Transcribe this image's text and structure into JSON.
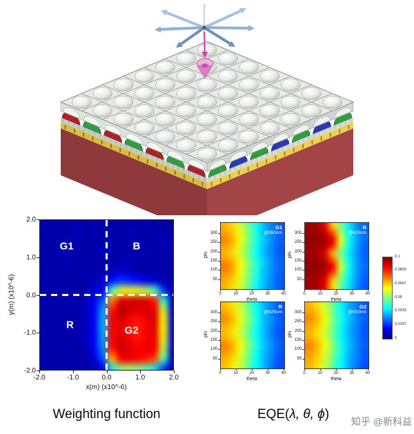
{
  "figure": {
    "watermark": "知乎 @新科益",
    "captions": {
      "left": "Weighting function",
      "eqe_prefix": "EQE(",
      "eqe_args": "λ, θ, ϕ",
      "eqe_suffix": ")"
    }
  },
  "sensor_3d": {
    "colors": {
      "base": "#a34547",
      "base_dark": "#8e3a3c",
      "gold": "#edd052",
      "gold_dark": "#d9bc42",
      "red": "#b22026",
      "green": "#2f9e3f",
      "blue": "#2a3ab4",
      "arrow_light": "#a6c2e2",
      "arrow_mid": "#8fb0d4",
      "arrow_dark": "#6d8fb8",
      "source_pink": "#f0b2e0",
      "source_magenta": "#cf3fae"
    }
  },
  "chart_data": [
    {
      "id": "weighting",
      "type": "heatmap",
      "title": "Weighting function",
      "xlabel": "x(m) (x10^-6)",
      "ylabel": "y(m) (x10^-6)",
      "xticks": [
        "-2.0",
        "-1.0",
        "0.0",
        "1.0",
        "2.0"
      ],
      "yticks": [
        "2.0",
        "1.0",
        "0.0",
        "-1.0",
        "-2.0"
      ],
      "xrange": [
        -2,
        2
      ],
      "yrange": [
        -2,
        2
      ],
      "colormap": "jet",
      "vmax": 1.0,
      "crosshair": {
        "x": 0.0,
        "y": 0.0,
        "style": "dashed-white"
      },
      "quadrant_labels": [
        {
          "text": "G1",
          "x": -1.2,
          "y": 1.3
        },
        {
          "text": "B",
          "x": 0.9,
          "y": 1.3
        },
        {
          "text": "R",
          "x": -1.1,
          "y": -0.8
        },
        {
          "text": "G2",
          "x": 0.75,
          "y": -0.95
        }
      ],
      "grid": [
        [
          0.04,
          0.04,
          0.05,
          0.04,
          0.04,
          0.04,
          0.05,
          0.04,
          0.04,
          0.05,
          0.04,
          0.04,
          0.05,
          0.04,
          0.04,
          0.04
        ],
        [
          0.04,
          0.05,
          0.04,
          0.04,
          0.06,
          0.04,
          0.04,
          0.05,
          0.04,
          0.04,
          0.06,
          0.04,
          0.04,
          0.05,
          0.04,
          0.04
        ],
        [
          0.05,
          0.04,
          0.04,
          0.05,
          0.04,
          0.04,
          0.05,
          0.04,
          0.05,
          0.04,
          0.04,
          0.05,
          0.04,
          0.04,
          0.06,
          0.04
        ],
        [
          0.04,
          0.04,
          0.06,
          0.04,
          0.05,
          0.04,
          0.04,
          0.06,
          0.04,
          0.05,
          0.04,
          0.04,
          0.06,
          0.04,
          0.04,
          0.05
        ],
        [
          0.04,
          0.05,
          0.04,
          0.06,
          0.04,
          0.05,
          0.04,
          0.04,
          0.05,
          0.04,
          0.06,
          0.04,
          0.05,
          0.04,
          0.05,
          0.04
        ],
        [
          0.05,
          0.04,
          0.05,
          0.04,
          0.04,
          0.06,
          0.04,
          0.05,
          0.06,
          0.08,
          0.06,
          0.05,
          0.04,
          0.05,
          0.04,
          0.04
        ],
        [
          0.04,
          0.05,
          0.04,
          0.04,
          0.05,
          0.04,
          0.06,
          0.08,
          0.14,
          0.18,
          0.16,
          0.14,
          0.1,
          0.07,
          0.05,
          0.04
        ],
        [
          0.04,
          0.04,
          0.05,
          0.04,
          0.04,
          0.05,
          0.08,
          0.12,
          0.45,
          0.6,
          0.62,
          0.6,
          0.55,
          0.45,
          0.18,
          0.05
        ],
        [
          0.05,
          0.04,
          0.04,
          0.05,
          0.04,
          0.06,
          0.1,
          0.22,
          0.75,
          0.9,
          0.92,
          0.92,
          0.9,
          0.85,
          0.42,
          0.06
        ],
        [
          0.04,
          0.05,
          0.04,
          0.04,
          0.05,
          0.06,
          0.12,
          0.28,
          0.85,
          0.95,
          0.92,
          0.9,
          0.92,
          0.9,
          0.58,
          0.08
        ],
        [
          0.04,
          0.04,
          0.05,
          0.04,
          0.04,
          0.06,
          0.12,
          0.3,
          0.88,
          0.92,
          0.88,
          0.86,
          0.88,
          0.92,
          0.62,
          0.08
        ],
        [
          0.05,
          0.04,
          0.04,
          0.05,
          0.04,
          0.06,
          0.12,
          0.3,
          0.88,
          0.9,
          0.86,
          0.84,
          0.88,
          0.9,
          0.62,
          0.08
        ],
        [
          0.04,
          0.05,
          0.04,
          0.04,
          0.05,
          0.06,
          0.12,
          0.28,
          0.88,
          0.92,
          0.88,
          0.86,
          0.88,
          0.9,
          0.6,
          0.08
        ],
        [
          0.04,
          0.04,
          0.05,
          0.04,
          0.04,
          0.06,
          0.1,
          0.26,
          0.85,
          0.92,
          0.9,
          0.88,
          0.9,
          0.88,
          0.55,
          0.07
        ],
        [
          0.05,
          0.04,
          0.04,
          0.05,
          0.04,
          0.05,
          0.08,
          0.2,
          0.7,
          0.88,
          0.9,
          0.88,
          0.85,
          0.8,
          0.45,
          0.06
        ],
        [
          0.04,
          0.04,
          0.05,
          0.04,
          0.05,
          0.04,
          0.06,
          0.1,
          0.35,
          0.5,
          0.52,
          0.5,
          0.45,
          0.35,
          0.18,
          0.05
        ]
      ]
    },
    {
      "id": "eqe_g1",
      "type": "heatmap",
      "panel": "G1",
      "wavelength": "@550nm",
      "xlabel": "theta",
      "ylabel": "phi",
      "xticks": [
        0,
        10,
        20,
        30,
        40
      ],
      "yticks": [
        50,
        100,
        150,
        200,
        250,
        300
      ],
      "xrange": [
        0,
        40
      ],
      "yrange": [
        0,
        360
      ],
      "vmax": 0.1,
      "colormap": "jet",
      "grid": [
        [
          0.07,
          0.066,
          0.058,
          0.048,
          0.038,
          0.03,
          0.025,
          0.021
        ],
        [
          0.072,
          0.068,
          0.06,
          0.05,
          0.04,
          0.031,
          0.026,
          0.022
        ],
        [
          0.075,
          0.07,
          0.061,
          0.05,
          0.04,
          0.032,
          0.026,
          0.022
        ],
        [
          0.072,
          0.068,
          0.059,
          0.049,
          0.039,
          0.031,
          0.025,
          0.021
        ],
        [
          0.07,
          0.066,
          0.058,
          0.048,
          0.038,
          0.03,
          0.025,
          0.021
        ],
        [
          0.072,
          0.069,
          0.06,
          0.05,
          0.04,
          0.032,
          0.026,
          0.022
        ],
        [
          0.076,
          0.071,
          0.062,
          0.051,
          0.041,
          0.032,
          0.026,
          0.022
        ],
        [
          0.074,
          0.07,
          0.061,
          0.05,
          0.04,
          0.031,
          0.026,
          0.022
        ],
        [
          0.071,
          0.067,
          0.059,
          0.049,
          0.039,
          0.031,
          0.025,
          0.021
        ],
        [
          0.07,
          0.066,
          0.058,
          0.048,
          0.038,
          0.03,
          0.025,
          0.021
        ]
      ]
    },
    {
      "id": "eqe_b",
      "type": "heatmap",
      "panel": "B",
      "wavelength": "@425nm",
      "xlabel": "theta",
      "ylabel": "phi",
      "xticks": [
        0,
        10,
        20,
        30,
        40
      ],
      "yticks": [
        50,
        100,
        150,
        200,
        250,
        300
      ],
      "xrange": [
        0,
        40
      ],
      "yrange": [
        0,
        360
      ],
      "vmax": 0.1,
      "colormap": "jet",
      "grid": [
        [
          0.097,
          0.096,
          0.09,
          0.068,
          0.05,
          0.036,
          0.027,
          0.022
        ],
        [
          0.098,
          0.097,
          0.094,
          0.08,
          0.054,
          0.038,
          0.028,
          0.023
        ],
        [
          0.098,
          0.098,
          0.096,
          0.09,
          0.06,
          0.04,
          0.029,
          0.023
        ],
        [
          0.098,
          0.097,
          0.095,
          0.085,
          0.056,
          0.038,
          0.028,
          0.022
        ],
        [
          0.097,
          0.096,
          0.092,
          0.072,
          0.05,
          0.036,
          0.027,
          0.022
        ],
        [
          0.098,
          0.097,
          0.094,
          0.078,
          0.053,
          0.037,
          0.028,
          0.022
        ],
        [
          0.098,
          0.098,
          0.096,
          0.088,
          0.058,
          0.039,
          0.028,
          0.023
        ],
        [
          0.098,
          0.097,
          0.095,
          0.082,
          0.055,
          0.038,
          0.028,
          0.022
        ],
        [
          0.097,
          0.096,
          0.091,
          0.07,
          0.05,
          0.036,
          0.027,
          0.022
        ],
        [
          0.097,
          0.096,
          0.09,
          0.066,
          0.048,
          0.035,
          0.026,
          0.021
        ]
      ]
    },
    {
      "id": "eqe_r",
      "type": "heatmap",
      "panel": "R",
      "wavelength": "@625nm",
      "xlabel": "theta",
      "ylabel": "phi",
      "xticks": [
        0,
        10,
        20,
        30,
        40
      ],
      "yticks": [
        50,
        100,
        150,
        200,
        250,
        300
      ],
      "xrange": [
        0,
        40
      ],
      "yrange": [
        0,
        360
      ],
      "vmax": 0.1,
      "colormap": "jet",
      "grid": [
        [
          0.069,
          0.065,
          0.057,
          0.047,
          0.038,
          0.03,
          0.025,
          0.021
        ],
        [
          0.071,
          0.067,
          0.059,
          0.049,
          0.039,
          0.031,
          0.025,
          0.021
        ],
        [
          0.074,
          0.069,
          0.06,
          0.05,
          0.04,
          0.031,
          0.026,
          0.021
        ],
        [
          0.071,
          0.067,
          0.059,
          0.049,
          0.039,
          0.031,
          0.025,
          0.021
        ],
        [
          0.069,
          0.065,
          0.057,
          0.047,
          0.038,
          0.03,
          0.024,
          0.02
        ],
        [
          0.071,
          0.067,
          0.059,
          0.049,
          0.039,
          0.031,
          0.025,
          0.021
        ],
        [
          0.075,
          0.07,
          0.061,
          0.05,
          0.04,
          0.032,
          0.026,
          0.021
        ],
        [
          0.073,
          0.069,
          0.06,
          0.049,
          0.039,
          0.031,
          0.025,
          0.021
        ],
        [
          0.07,
          0.066,
          0.058,
          0.048,
          0.038,
          0.03,
          0.025,
          0.02
        ],
        [
          0.069,
          0.065,
          0.057,
          0.047,
          0.037,
          0.03,
          0.024,
          0.02
        ]
      ]
    },
    {
      "id": "eqe_g2",
      "type": "heatmap",
      "panel": "G2",
      "wavelength": "@550nm",
      "xlabel": "theta",
      "ylabel": "phi",
      "xticks": [
        0,
        10,
        20,
        30,
        40
      ],
      "yticks": [
        50,
        100,
        150,
        200,
        250,
        300
      ],
      "xrange": [
        0,
        40
      ],
      "yrange": [
        0,
        360
      ],
      "vmax": 0.1,
      "colormap": "jet",
      "grid": [
        [
          0.07,
          0.066,
          0.058,
          0.048,
          0.038,
          0.03,
          0.025,
          0.021
        ],
        [
          0.072,
          0.068,
          0.059,
          0.049,
          0.039,
          0.031,
          0.025,
          0.021
        ],
        [
          0.074,
          0.07,
          0.061,
          0.05,
          0.04,
          0.032,
          0.026,
          0.022
        ],
        [
          0.072,
          0.068,
          0.06,
          0.049,
          0.039,
          0.031,
          0.025,
          0.021
        ],
        [
          0.07,
          0.066,
          0.058,
          0.048,
          0.038,
          0.03,
          0.025,
          0.021
        ],
        [
          0.071,
          0.067,
          0.059,
          0.049,
          0.039,
          0.031,
          0.025,
          0.021
        ],
        [
          0.075,
          0.07,
          0.062,
          0.051,
          0.04,
          0.032,
          0.026,
          0.022
        ],
        [
          0.073,
          0.069,
          0.06,
          0.05,
          0.04,
          0.031,
          0.025,
          0.021
        ],
        [
          0.071,
          0.067,
          0.058,
          0.048,
          0.038,
          0.03,
          0.025,
          0.021
        ],
        [
          0.07,
          0.066,
          0.057,
          0.047,
          0.038,
          0.03,
          0.024,
          0.02
        ]
      ]
    },
    {
      "id": "colorbar",
      "type": "colorbar",
      "colormap": "jet",
      "vmax": 0.1,
      "ticks": [
        "0.1",
        "0.0833",
        "0.0667",
        "0.05",
        "0.0333",
        "0.0167",
        "0"
      ]
    }
  ]
}
